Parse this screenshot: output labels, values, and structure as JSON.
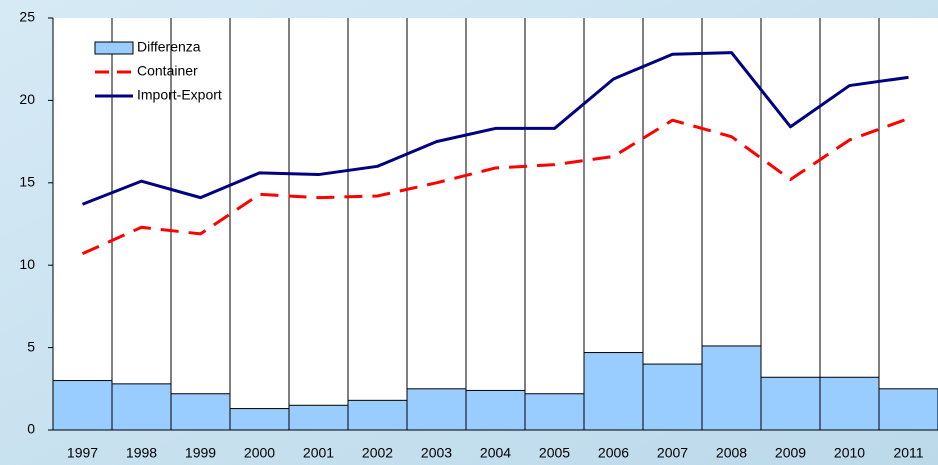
{
  "chart_data": {
    "type": "bar-line",
    "categories": [
      "1997",
      "1998",
      "1999",
      "2000",
      "2001",
      "2002",
      "2003",
      "2004",
      "2005",
      "2006",
      "2007",
      "2008",
      "2009",
      "2010",
      "2011"
    ],
    "series": [
      {
        "name": "Differenza",
        "type": "bar",
        "color": "#99ccff",
        "values": [
          3.0,
          2.8,
          2.2,
          1.3,
          1.5,
          1.8,
          2.5,
          2.4,
          2.2,
          4.7,
          4.0,
          5.1,
          3.2,
          3.2,
          2.5
        ]
      },
      {
        "name": "Container",
        "type": "line",
        "dashed": true,
        "color": "#ff0000",
        "values": [
          10.7,
          12.3,
          11.9,
          14.3,
          14.1,
          14.2,
          15.0,
          15.9,
          16.1,
          16.6,
          18.8,
          17.8,
          15.2,
          17.6,
          18.9
        ]
      },
      {
        "name": "Import-Export",
        "type": "line",
        "color": "#000080",
        "values": [
          13.7,
          15.1,
          14.1,
          15.6,
          15.5,
          16.0,
          17.5,
          18.3,
          18.3,
          21.3,
          22.8,
          22.9,
          18.4,
          20.9,
          21.4
        ]
      }
    ],
    "ylim": [
      0,
      25
    ],
    "yticks": [
      0,
      5,
      10,
      15,
      20,
      25
    ],
    "legend": "upper left"
  }
}
